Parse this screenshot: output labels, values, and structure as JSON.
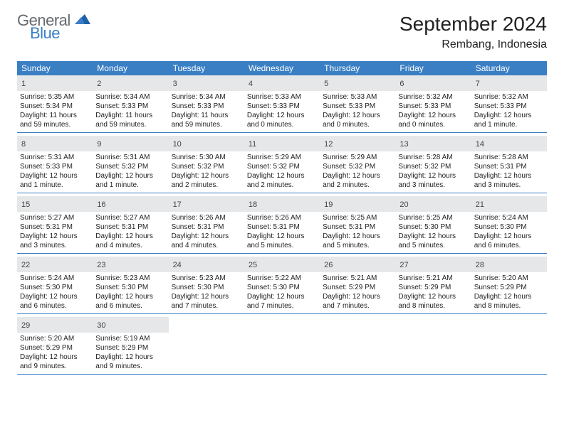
{
  "logo": {
    "text_general": "General",
    "text_blue": "Blue"
  },
  "title": "September 2024",
  "location": "Rembang, Indonesia",
  "header_color": "#3a7fc4",
  "daynum_bg": "#e6e7e8",
  "weekdays": [
    "Sunday",
    "Monday",
    "Tuesday",
    "Wednesday",
    "Thursday",
    "Friday",
    "Saturday"
  ],
  "weeks": [
    [
      {
        "n": "1",
        "sunrise": "5:35 AM",
        "sunset": "5:34 PM",
        "daylight": "11 hours and 59 minutes."
      },
      {
        "n": "2",
        "sunrise": "5:34 AM",
        "sunset": "5:33 PM",
        "daylight": "11 hours and 59 minutes."
      },
      {
        "n": "3",
        "sunrise": "5:34 AM",
        "sunset": "5:33 PM",
        "daylight": "11 hours and 59 minutes."
      },
      {
        "n": "4",
        "sunrise": "5:33 AM",
        "sunset": "5:33 PM",
        "daylight": "12 hours and 0 minutes."
      },
      {
        "n": "5",
        "sunrise": "5:33 AM",
        "sunset": "5:33 PM",
        "daylight": "12 hours and 0 minutes."
      },
      {
        "n": "6",
        "sunrise": "5:32 AM",
        "sunset": "5:33 PM",
        "daylight": "12 hours and 0 minutes."
      },
      {
        "n": "7",
        "sunrise": "5:32 AM",
        "sunset": "5:33 PM",
        "daylight": "12 hours and 1 minute."
      }
    ],
    [
      {
        "n": "8",
        "sunrise": "5:31 AM",
        "sunset": "5:33 PM",
        "daylight": "12 hours and 1 minute."
      },
      {
        "n": "9",
        "sunrise": "5:31 AM",
        "sunset": "5:32 PM",
        "daylight": "12 hours and 1 minute."
      },
      {
        "n": "10",
        "sunrise": "5:30 AM",
        "sunset": "5:32 PM",
        "daylight": "12 hours and 2 minutes."
      },
      {
        "n": "11",
        "sunrise": "5:29 AM",
        "sunset": "5:32 PM",
        "daylight": "12 hours and 2 minutes."
      },
      {
        "n": "12",
        "sunrise": "5:29 AM",
        "sunset": "5:32 PM",
        "daylight": "12 hours and 2 minutes."
      },
      {
        "n": "13",
        "sunrise": "5:28 AM",
        "sunset": "5:32 PM",
        "daylight": "12 hours and 3 minutes."
      },
      {
        "n": "14",
        "sunrise": "5:28 AM",
        "sunset": "5:31 PM",
        "daylight": "12 hours and 3 minutes."
      }
    ],
    [
      {
        "n": "15",
        "sunrise": "5:27 AM",
        "sunset": "5:31 PM",
        "daylight": "12 hours and 3 minutes."
      },
      {
        "n": "16",
        "sunrise": "5:27 AM",
        "sunset": "5:31 PM",
        "daylight": "12 hours and 4 minutes."
      },
      {
        "n": "17",
        "sunrise": "5:26 AM",
        "sunset": "5:31 PM",
        "daylight": "12 hours and 4 minutes."
      },
      {
        "n": "18",
        "sunrise": "5:26 AM",
        "sunset": "5:31 PM",
        "daylight": "12 hours and 5 minutes."
      },
      {
        "n": "19",
        "sunrise": "5:25 AM",
        "sunset": "5:31 PM",
        "daylight": "12 hours and 5 minutes."
      },
      {
        "n": "20",
        "sunrise": "5:25 AM",
        "sunset": "5:30 PM",
        "daylight": "12 hours and 5 minutes."
      },
      {
        "n": "21",
        "sunrise": "5:24 AM",
        "sunset": "5:30 PM",
        "daylight": "12 hours and 6 minutes."
      }
    ],
    [
      {
        "n": "22",
        "sunrise": "5:24 AM",
        "sunset": "5:30 PM",
        "daylight": "12 hours and 6 minutes."
      },
      {
        "n": "23",
        "sunrise": "5:23 AM",
        "sunset": "5:30 PM",
        "daylight": "12 hours and 6 minutes."
      },
      {
        "n": "24",
        "sunrise": "5:23 AM",
        "sunset": "5:30 PM",
        "daylight": "12 hours and 7 minutes."
      },
      {
        "n": "25",
        "sunrise": "5:22 AM",
        "sunset": "5:30 PM",
        "daylight": "12 hours and 7 minutes."
      },
      {
        "n": "26",
        "sunrise": "5:21 AM",
        "sunset": "5:29 PM",
        "daylight": "12 hours and 7 minutes."
      },
      {
        "n": "27",
        "sunrise": "5:21 AM",
        "sunset": "5:29 PM",
        "daylight": "12 hours and 8 minutes."
      },
      {
        "n": "28",
        "sunrise": "5:20 AM",
        "sunset": "5:29 PM",
        "daylight": "12 hours and 8 minutes."
      }
    ],
    [
      {
        "n": "29",
        "sunrise": "5:20 AM",
        "sunset": "5:29 PM",
        "daylight": "12 hours and 9 minutes."
      },
      {
        "n": "30",
        "sunrise": "5:19 AM",
        "sunset": "5:29 PM",
        "daylight": "12 hours and 9 minutes."
      },
      null,
      null,
      null,
      null,
      null
    ]
  ],
  "labels": {
    "sunrise": "Sunrise: ",
    "sunset": "Sunset: ",
    "daylight": "Daylight: "
  }
}
